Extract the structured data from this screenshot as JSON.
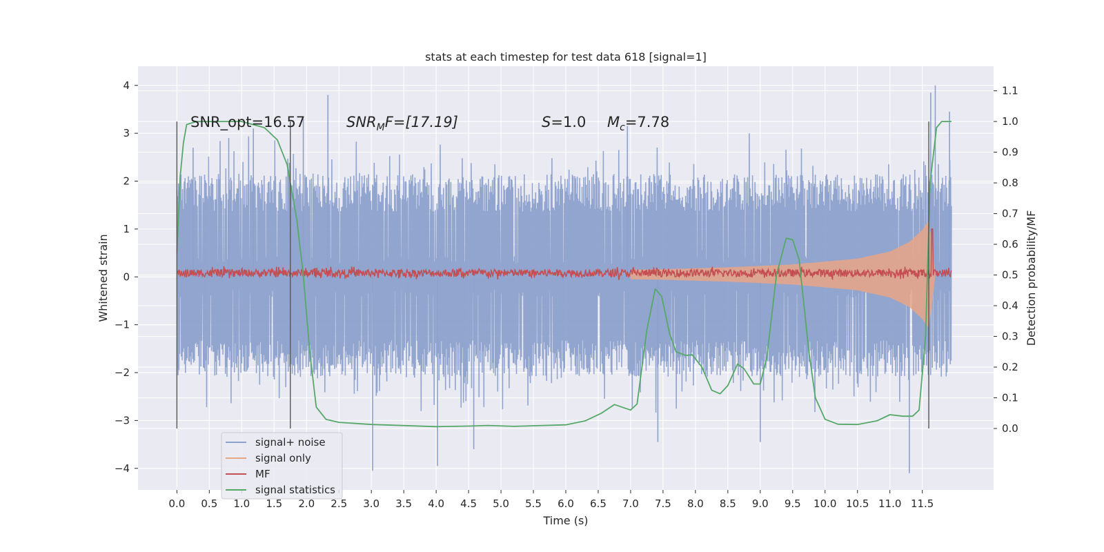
{
  "chart_data": {
    "type": "line",
    "title": "stats at each timestep for test data 618 [signal=1]",
    "xlabel": "Time (s)",
    "ylabel": "Whitened strain",
    "ylabel_right": "Detection probability/MF",
    "xlim": [
      -0.6,
      12.6
    ],
    "ylim": [
      -4.45,
      4.4
    ],
    "ylim_right": [
      -0.2,
      1.18
    ],
    "x_ticks": [
      0.0,
      0.5,
      1.0,
      1.5,
      2.0,
      2.5,
      3.0,
      3.5,
      4.0,
      4.5,
      5.0,
      5.5,
      6.0,
      6.5,
      7.0,
      7.5,
      8.0,
      8.5,
      9.0,
      9.5,
      10.0,
      10.5,
      11.0,
      11.5
    ],
    "x_tick_labels": [
      "0.0",
      "0.5",
      "1.0",
      "1.5",
      "2.0",
      "2.5",
      "3.0",
      "3.5",
      "4.0",
      "4.5",
      "5.0",
      "5.5",
      "6.0",
      "6.5",
      "7.0",
      "7.5",
      "8.0",
      "8.5",
      "9.0",
      "9.5",
      "10.0",
      "10.5",
      "11.0",
      "11.5"
    ],
    "y_ticks": [
      4,
      3,
      2,
      1,
      0,
      -1,
      -2,
      -3,
      -4
    ],
    "y_tick_labels": [
      "4",
      "3",
      "2",
      "1",
      "0",
      "−1",
      "−2",
      "−3",
      "−4"
    ],
    "y_right_ticks": [
      1.1,
      1.0,
      0.9,
      0.8,
      0.7,
      0.6,
      0.5,
      0.4,
      0.3,
      0.2,
      0.1,
      0.0
    ],
    "y_right_tick_labels": [
      "1.1",
      "1.0",
      "0.9",
      "0.8",
      "0.7",
      "0.6",
      "0.5",
      "0.4",
      "0.3",
      "0.2",
      "0.1",
      "0.0"
    ],
    "grid": true,
    "legend_position": "lower-left",
    "annotations": {
      "snr_opt": "SNR_opt=16.57",
      "snr_mf_sym": "SNR",
      "snr_mf_sub": "M",
      "snr_mf_rest": "F=[17.19]",
      "s_sym": "S",
      "s_rest": "=1.0",
      "mc_sym": "M",
      "mc_sub": "c",
      "mc_rest": "=7.78"
    },
    "vertical_markers": [
      0.0,
      1.75,
      11.6
    ],
    "series": [
      {
        "name": "signal+ noise",
        "axis": "left",
        "color": "#8da1cc",
        "x_range": [
          0.0,
          11.95
        ],
        "envelope_upper_typical": 1.75,
        "envelope_lower_typical": -1.7,
        "extremes": [
          {
            "x": 0.25,
            "y": 2.7
          },
          {
            "x": 0.8,
            "y": 2.9
          },
          {
            "x": 1.18,
            "y": 3.1
          },
          {
            "x": 1.95,
            "y": 3.3
          },
          {
            "x": 2.33,
            "y": 3.8
          },
          {
            "x": 4.02,
            "y": -3.95
          },
          {
            "x": 3.02,
            "y": -4.05
          },
          {
            "x": 4.58,
            "y": -3.6
          },
          {
            "x": 6.95,
            "y": 3.15
          },
          {
            "x": 7.42,
            "y": -3.45
          },
          {
            "x": 9.0,
            "y": -3.45
          },
          {
            "x": 11.3,
            "y": -4.1
          },
          {
            "x": 11.7,
            "y": 4.0
          },
          {
            "x": 11.63,
            "y": 3.85
          },
          {
            "x": 11.92,
            "y": 3.45
          }
        ]
      },
      {
        "name": "signal only",
        "axis": "left",
        "color": "#e8a487",
        "chirp_amplitude": [
          {
            "x": 0.0,
            "y": 0.03
          },
          {
            "x": 4.0,
            "y": 0.04
          },
          {
            "x": 6.0,
            "y": 0.05
          },
          {
            "x": 7.5,
            "y": 0.08
          },
          {
            "x": 8.5,
            "y": 0.12
          },
          {
            "x": 9.5,
            "y": 0.18
          },
          {
            "x": 10.5,
            "y": 0.3
          },
          {
            "x": 11.0,
            "y": 0.45
          },
          {
            "x": 11.3,
            "y": 0.65
          },
          {
            "x": 11.5,
            "y": 0.9
          },
          {
            "x": 11.6,
            "y": 1.1
          },
          {
            "x": 11.65,
            "y": 0.6
          },
          {
            "x": 11.7,
            "y": 0.0
          }
        ]
      },
      {
        "name": "MF",
        "axis": "left",
        "color": "#c44e52",
        "center": 0.08,
        "spread": 0.08,
        "peak": {
          "x": 11.65,
          "y": 1.0
        }
      },
      {
        "name": "signal statistics",
        "axis": "right",
        "color": "#55a868",
        "points": [
          {
            "x": 0.0,
            "y": 0.57
          },
          {
            "x": 0.05,
            "y": 0.82
          },
          {
            "x": 0.1,
            "y": 0.93
          },
          {
            "x": 0.15,
            "y": 0.99
          },
          {
            "x": 0.3,
            "y": 1.0
          },
          {
            "x": 1.0,
            "y": 1.0
          },
          {
            "x": 1.35,
            "y": 0.98
          },
          {
            "x": 1.55,
            "y": 0.94
          },
          {
            "x": 1.7,
            "y": 0.86
          },
          {
            "x": 1.85,
            "y": 0.68
          },
          {
            "x": 1.95,
            "y": 0.5
          },
          {
            "x": 2.05,
            "y": 0.25
          },
          {
            "x": 2.15,
            "y": 0.07
          },
          {
            "x": 2.3,
            "y": 0.03
          },
          {
            "x": 2.5,
            "y": 0.02
          },
          {
            "x": 3.0,
            "y": 0.013
          },
          {
            "x": 4.0,
            "y": 0.006
          },
          {
            "x": 4.5,
            "y": 0.008
          },
          {
            "x": 4.8,
            "y": 0.01
          },
          {
            "x": 5.2,
            "y": 0.007
          },
          {
            "x": 6.0,
            "y": 0.012
          },
          {
            "x": 6.3,
            "y": 0.025
          },
          {
            "x": 6.55,
            "y": 0.05
          },
          {
            "x": 6.75,
            "y": 0.078
          },
          {
            "x": 7.0,
            "y": 0.06
          },
          {
            "x": 7.1,
            "y": 0.08
          },
          {
            "x": 7.25,
            "y": 0.32
          },
          {
            "x": 7.38,
            "y": 0.455
          },
          {
            "x": 7.48,
            "y": 0.43
          },
          {
            "x": 7.6,
            "y": 0.31
          },
          {
            "x": 7.7,
            "y": 0.25
          },
          {
            "x": 7.85,
            "y": 0.238
          },
          {
            "x": 7.95,
            "y": 0.24
          },
          {
            "x": 8.1,
            "y": 0.2
          },
          {
            "x": 8.25,
            "y": 0.125
          },
          {
            "x": 8.38,
            "y": 0.113
          },
          {
            "x": 8.5,
            "y": 0.14
          },
          {
            "x": 8.65,
            "y": 0.21
          },
          {
            "x": 8.75,
            "y": 0.195
          },
          {
            "x": 8.9,
            "y": 0.145
          },
          {
            "x": 9.0,
            "y": 0.145
          },
          {
            "x": 9.1,
            "y": 0.23
          },
          {
            "x": 9.25,
            "y": 0.5
          },
          {
            "x": 9.4,
            "y": 0.62
          },
          {
            "x": 9.5,
            "y": 0.615
          },
          {
            "x": 9.6,
            "y": 0.55
          },
          {
            "x": 9.75,
            "y": 0.25
          },
          {
            "x": 9.85,
            "y": 0.1
          },
          {
            "x": 10.0,
            "y": 0.03
          },
          {
            "x": 10.2,
            "y": 0.014
          },
          {
            "x": 10.5,
            "y": 0.013
          },
          {
            "x": 10.8,
            "y": 0.025
          },
          {
            "x": 11.0,
            "y": 0.045
          },
          {
            "x": 11.2,
            "y": 0.04
          },
          {
            "x": 11.35,
            "y": 0.04
          },
          {
            "x": 11.45,
            "y": 0.06
          },
          {
            "x": 11.55,
            "y": 0.3
          },
          {
            "x": 11.62,
            "y": 0.8
          },
          {
            "x": 11.72,
            "y": 0.98
          },
          {
            "x": 11.8,
            "y": 1.0
          },
          {
            "x": 11.95,
            "y": 1.0
          }
        ]
      }
    ]
  }
}
